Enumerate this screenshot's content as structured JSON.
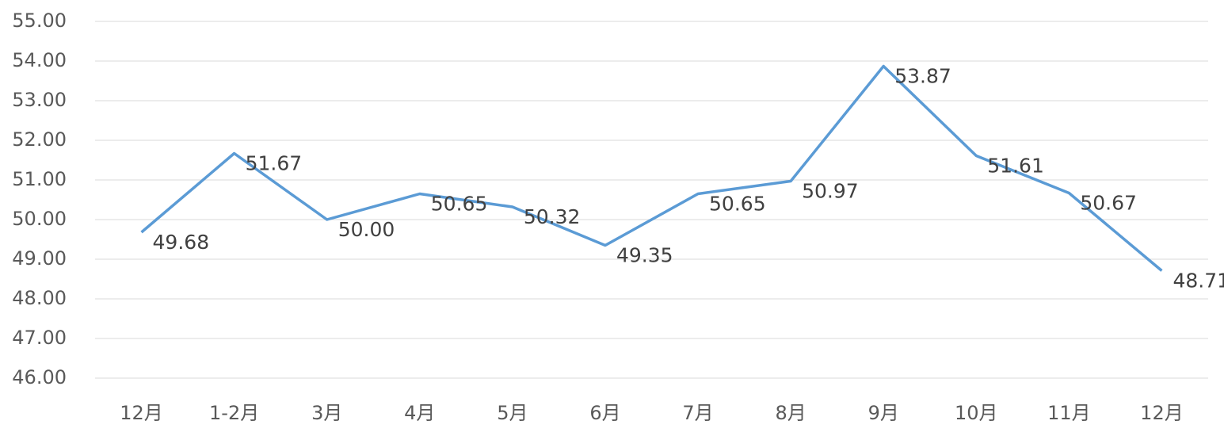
{
  "chart_data": {
    "type": "line",
    "categories": [
      "12月",
      "1-2月",
      "3月",
      "4月",
      "5月",
      "6月",
      "7月",
      "8月",
      "9月",
      "10月",
      "11月",
      "12月"
    ],
    "series": [
      {
        "color": "#5b9bd5",
        "values": [
          49.68,
          51.67,
          50.0,
          50.65,
          50.32,
          49.35,
          50.65,
          50.97,
          53.87,
          51.61,
          50.67,
          48.71
        ],
        "value_labels": [
          "49.68",
          "51.67",
          "50.00",
          "50.65",
          "50.32",
          "49.35",
          "50.65",
          "50.97",
          "53.87",
          "51.61",
          "50.67",
          "48.71"
        ]
      }
    ],
    "ylim": [
      46,
      55
    ],
    "yticks": [
      {
        "value": 46,
        "label": "46.00"
      },
      {
        "value": 47,
        "label": "47.00"
      },
      {
        "value": 48,
        "label": "48.00"
      },
      {
        "value": 49,
        "label": "49.00"
      },
      {
        "value": 50,
        "label": "50.00"
      },
      {
        "value": 51,
        "label": "51.00"
      },
      {
        "value": 52,
        "label": "52.00"
      },
      {
        "value": 53,
        "label": "53.00"
      },
      {
        "value": 54,
        "label": "54.00"
      },
      {
        "value": 55,
        "label": "55.00"
      }
    ],
    "grid": true
  }
}
